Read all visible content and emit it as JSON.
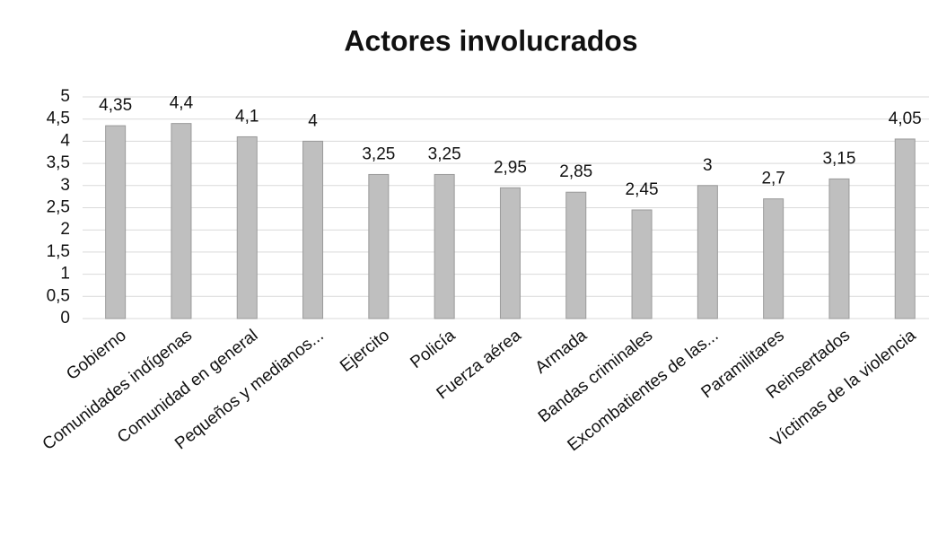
{
  "chart_data": {
    "type": "bar",
    "title": "Actores involucrados",
    "categories": [
      "Gobierno",
      "Comunidades indígenas",
      "Comunidad en general",
      "Pequeños y medianos...",
      "Ejercito",
      "Policía",
      "Fuerza aérea",
      "Armada",
      "Bandas criminales",
      "Excombatientes de las...",
      "Paramilitares",
      "Reinsertados",
      "Víctimas de la violencia"
    ],
    "values": [
      4.35,
      4.4,
      4.1,
      4,
      3.25,
      3.25,
      2.95,
      2.85,
      2.45,
      3,
      2.7,
      3.15,
      4.05
    ],
    "value_labels": [
      "4,35",
      "4,4",
      "4,1",
      "4",
      "3,25",
      "3,25",
      "2,95",
      "2,85",
      "2,45",
      "3",
      "2,7",
      "3,15",
      "4,05"
    ],
    "color": "#bfbfbf",
    "ylim": [
      0,
      5
    ],
    "yticks": [
      0,
      {
        "value": 0.5,
        "label": "0,5"
      },
      1,
      {
        "value": 1.5,
        "label": "1,5"
      },
      2,
      {
        "value": 2.5,
        "label": "2,5"
      },
      3,
      {
        "value": 3.5,
        "label": "3,5"
      },
      4,
      {
        "value": 4.5,
        "label": "4,5"
      },
      5
    ],
    "grid": true
  }
}
